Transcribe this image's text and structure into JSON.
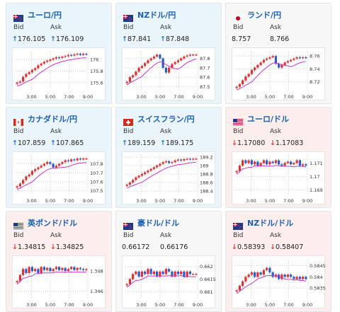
{
  "colors": {
    "up_bg": "#eaf4fb",
    "down_bg": "#fdeeee",
    "up_arrow": "#1e6fd9",
    "down_arrow": "#d93a3a",
    "title": "#1a5fb4",
    "candle_up": "#e03030",
    "candle_down": "#2f59c8",
    "ma": "#cc33cc",
    "ma2": "#39a0ff"
  },
  "labels": {
    "bid": "Bid",
    "ask": "Ask"
  },
  "cards": [
    {
      "name": "ユーロ/円",
      "flag": "eu-flag-icon",
      "trend": "up",
      "bid": "176.105",
      "ask": "176.109",
      "bid_arrow": "↑",
      "ask_arrow": "↑",
      "chart_data": {
        "type": "candlestick",
        "x": [
          "3:00",
          "5:00",
          "7:00",
          "9:00"
        ],
        "y_ticks": [
          "176",
          "175.8",
          "175.6"
        ],
        "ylim": [
          175.45,
          176.15
        ],
        "closes": [
          175.6,
          175.62,
          175.7,
          175.75,
          175.78,
          175.82,
          175.85,
          175.9,
          175.93,
          175.96,
          175.98,
          176.0,
          176.02,
          176.04,
          176.03,
          176.05,
          176.06,
          176.08,
          176.07,
          176.09,
          176.1,
          176.08,
          176.1,
          176.09
        ]
      }
    },
    {
      "name": "NZドル/円",
      "flag": "nz-flag-icon",
      "trend": "up",
      "bid": "87.841",
      "ask": "87.848",
      "bid_arrow": "↑",
      "ask_arrow": "↑",
      "chart_data": {
        "type": "candlestick",
        "x": [
          "3:00",
          "5:00",
          "7:00",
          "9:00"
        ],
        "y_ticks": [
          "87.8",
          "87.7",
          "87.6",
          "87.5"
        ],
        "ylim": [
          87.45,
          87.88
        ],
        "closes": [
          87.55,
          87.6,
          87.62,
          87.66,
          87.7,
          87.72,
          87.75,
          87.78,
          87.8,
          87.82,
          87.84,
          87.8,
          87.7,
          87.65,
          87.7,
          87.74,
          87.76,
          87.78,
          87.8,
          87.82,
          87.83,
          87.84,
          87.84,
          87.84
        ]
      }
    },
    {
      "name": "ランド/円",
      "flag": "za-flag-icon",
      "trend": "flat",
      "bid": "8.757",
      "ask": "8.766",
      "bid_arrow": "",
      "ask_arrow": "",
      "chart_data": {
        "type": "candlestick",
        "x": [
          "3:00",
          "5:00",
          "7:00",
          "9:00"
        ],
        "y_ticks": [
          "8.76",
          "8.74",
          "8.72"
        ],
        "ylim": [
          8.705,
          8.768
        ],
        "closes": [
          8.712,
          8.716,
          8.722,
          8.728,
          8.732,
          8.738,
          8.742,
          8.746,
          8.75,
          8.754,
          8.756,
          8.758,
          8.76,
          8.748,
          8.742,
          8.746,
          8.75,
          8.752,
          8.754,
          8.756,
          8.758,
          8.757,
          8.758,
          8.757
        ]
      }
    },
    {
      "name": "カナダドル/円",
      "flag": "ca-flag-icon",
      "trend": "up",
      "bid": "107.859",
      "ask": "107.865",
      "bid_arrow": "↑",
      "ask_arrow": "↑",
      "chart_data": {
        "type": "candlestick",
        "x": [
          "3:00",
          "5:00",
          "7:00",
          "9:00"
        ],
        "y_ticks": [
          "107.8",
          "107.7",
          "107.6",
          "107.5"
        ],
        "ylim": [
          107.45,
          107.9
        ],
        "closes": [
          107.55,
          107.58,
          107.62,
          107.66,
          107.68,
          107.72,
          107.74,
          107.76,
          107.78,
          107.8,
          107.82,
          107.8,
          107.76,
          107.78,
          107.8,
          107.82,
          107.84,
          107.83,
          107.85,
          107.84,
          107.86,
          107.85,
          107.86,
          107.86
        ]
      }
    },
    {
      "name": "スイスフラン/円",
      "flag": "ch-flag-icon",
      "trend": "up",
      "bid": "189.159",
      "ask": "189.175",
      "bid_arrow": "↑",
      "ask_arrow": "↑",
      "chart_data": {
        "type": "candlestick",
        "x": [
          "3:00",
          "5:00",
          "7:00",
          "9:00"
        ],
        "y_ticks": [
          "189.2",
          "189",
          "188.8",
          "188.6",
          "188.4"
        ],
        "ylim": [
          188.3,
          189.25
        ],
        "closes": [
          188.55,
          188.6,
          188.66,
          188.72,
          188.76,
          188.8,
          188.84,
          188.88,
          188.92,
          188.96,
          189.0,
          189.04,
          189.08,
          189.1,
          189.06,
          189.08,
          189.12,
          189.14,
          189.12,
          189.15,
          189.16,
          189.15,
          189.16,
          189.16
        ]
      }
    },
    {
      "name": "ユーロ/ドル",
      "flag": "us-flag-icon",
      "trend": "down",
      "bid": "1.17080",
      "ask": "1.17083",
      "bid_arrow": "↓",
      "ask_arrow": "↓",
      "chart_data": {
        "type": "candlestick",
        "x": [
          "3:00",
          "5:00",
          "7:00",
          "9:00"
        ],
        "y_ticks": [
          "1.171",
          "1.17",
          "1.169"
        ],
        "ylim": [
          1.1686,
          1.1716
        ],
        "closes": [
          1.1704,
          1.1708,
          1.1712,
          1.171,
          1.1712,
          1.1709,
          1.1711,
          1.1708,
          1.171,
          1.1712,
          1.1709,
          1.1711,
          1.171,
          1.1712,
          1.1709,
          1.1708,
          1.171,
          1.1711,
          1.1709,
          1.171,
          1.1712,
          1.1708,
          1.1709,
          1.1708
        ]
      }
    },
    {
      "name": "英ポンド/ドル",
      "flag": "gb-flag-icon",
      "trend": "down",
      "bid": "1.34815",
      "ask": "1.34825",
      "bid_arrow": "↓",
      "ask_arrow": "↓",
      "chart_data": {
        "type": "candlestick",
        "x": [
          "3:00",
          "5:00",
          "7:00",
          "9:00"
        ],
        "y_ticks": [
          "1.348",
          "1.346"
        ],
        "ylim": [
          1.3452,
          1.3492
        ],
        "closes": [
          1.347,
          1.3476,
          1.3482,
          1.3478,
          1.3484,
          1.348,
          1.3482,
          1.3478,
          1.3484,
          1.3481,
          1.3483,
          1.348,
          1.3482,
          1.3484,
          1.3481,
          1.3483,
          1.348,
          1.3482,
          1.3484,
          1.3481,
          1.3483,
          1.3482,
          1.3481,
          1.3482
        ]
      }
    },
    {
      "name": "豪ドル/ドル",
      "flag": "au-flag-icon",
      "trend": "flat",
      "bid": "0.66172",
      "ask": "0.66176",
      "bid_arrow": "",
      "ask_arrow": "",
      "chart_data": {
        "type": "candlestick",
        "x": [
          "3:00",
          "5:00",
          "7:00",
          "9:00"
        ],
        "y_ticks": [
          "0.662",
          "0.6615",
          "0.661"
        ],
        "ylim": [
          0.6607,
          0.6623
        ],
        "closes": [
          0.6613,
          0.6615,
          0.6617,
          0.6618,
          0.6616,
          0.6618,
          0.6617,
          0.6619,
          0.6617,
          0.6618,
          0.6616,
          0.6618,
          0.6617,
          0.6619,
          0.6618,
          0.6616,
          0.6618,
          0.6617,
          0.6618,
          0.6616,
          0.6618,
          0.6617,
          0.6617,
          0.6617
        ]
      }
    },
    {
      "name": "NZドル/ドル",
      "flag": "nz2-flag-icon",
      "trend": "down",
      "bid": "0.58393",
      "ask": "0.58407",
      "bid_arrow": "↓",
      "ask_arrow": "↓",
      "chart_data": {
        "type": "candlestick",
        "x": [
          "3:00",
          "5:00",
          "7:00",
          "9:00"
        ],
        "y_ticks": [
          "0.5845",
          "0.584",
          "0.5835"
        ],
        "ylim": [
          0.583,
          0.5848
        ],
        "closes": [
          0.5834,
          0.5836,
          0.5838,
          0.584,
          0.5841,
          0.5842,
          0.584,
          0.5842,
          0.5841,
          0.5843,
          0.5844,
          0.5842,
          0.584,
          0.5841,
          0.5839,
          0.5841,
          0.584,
          0.5841,
          0.584,
          0.5839,
          0.584,
          0.5839,
          0.584,
          0.5839
        ]
      }
    }
  ]
}
